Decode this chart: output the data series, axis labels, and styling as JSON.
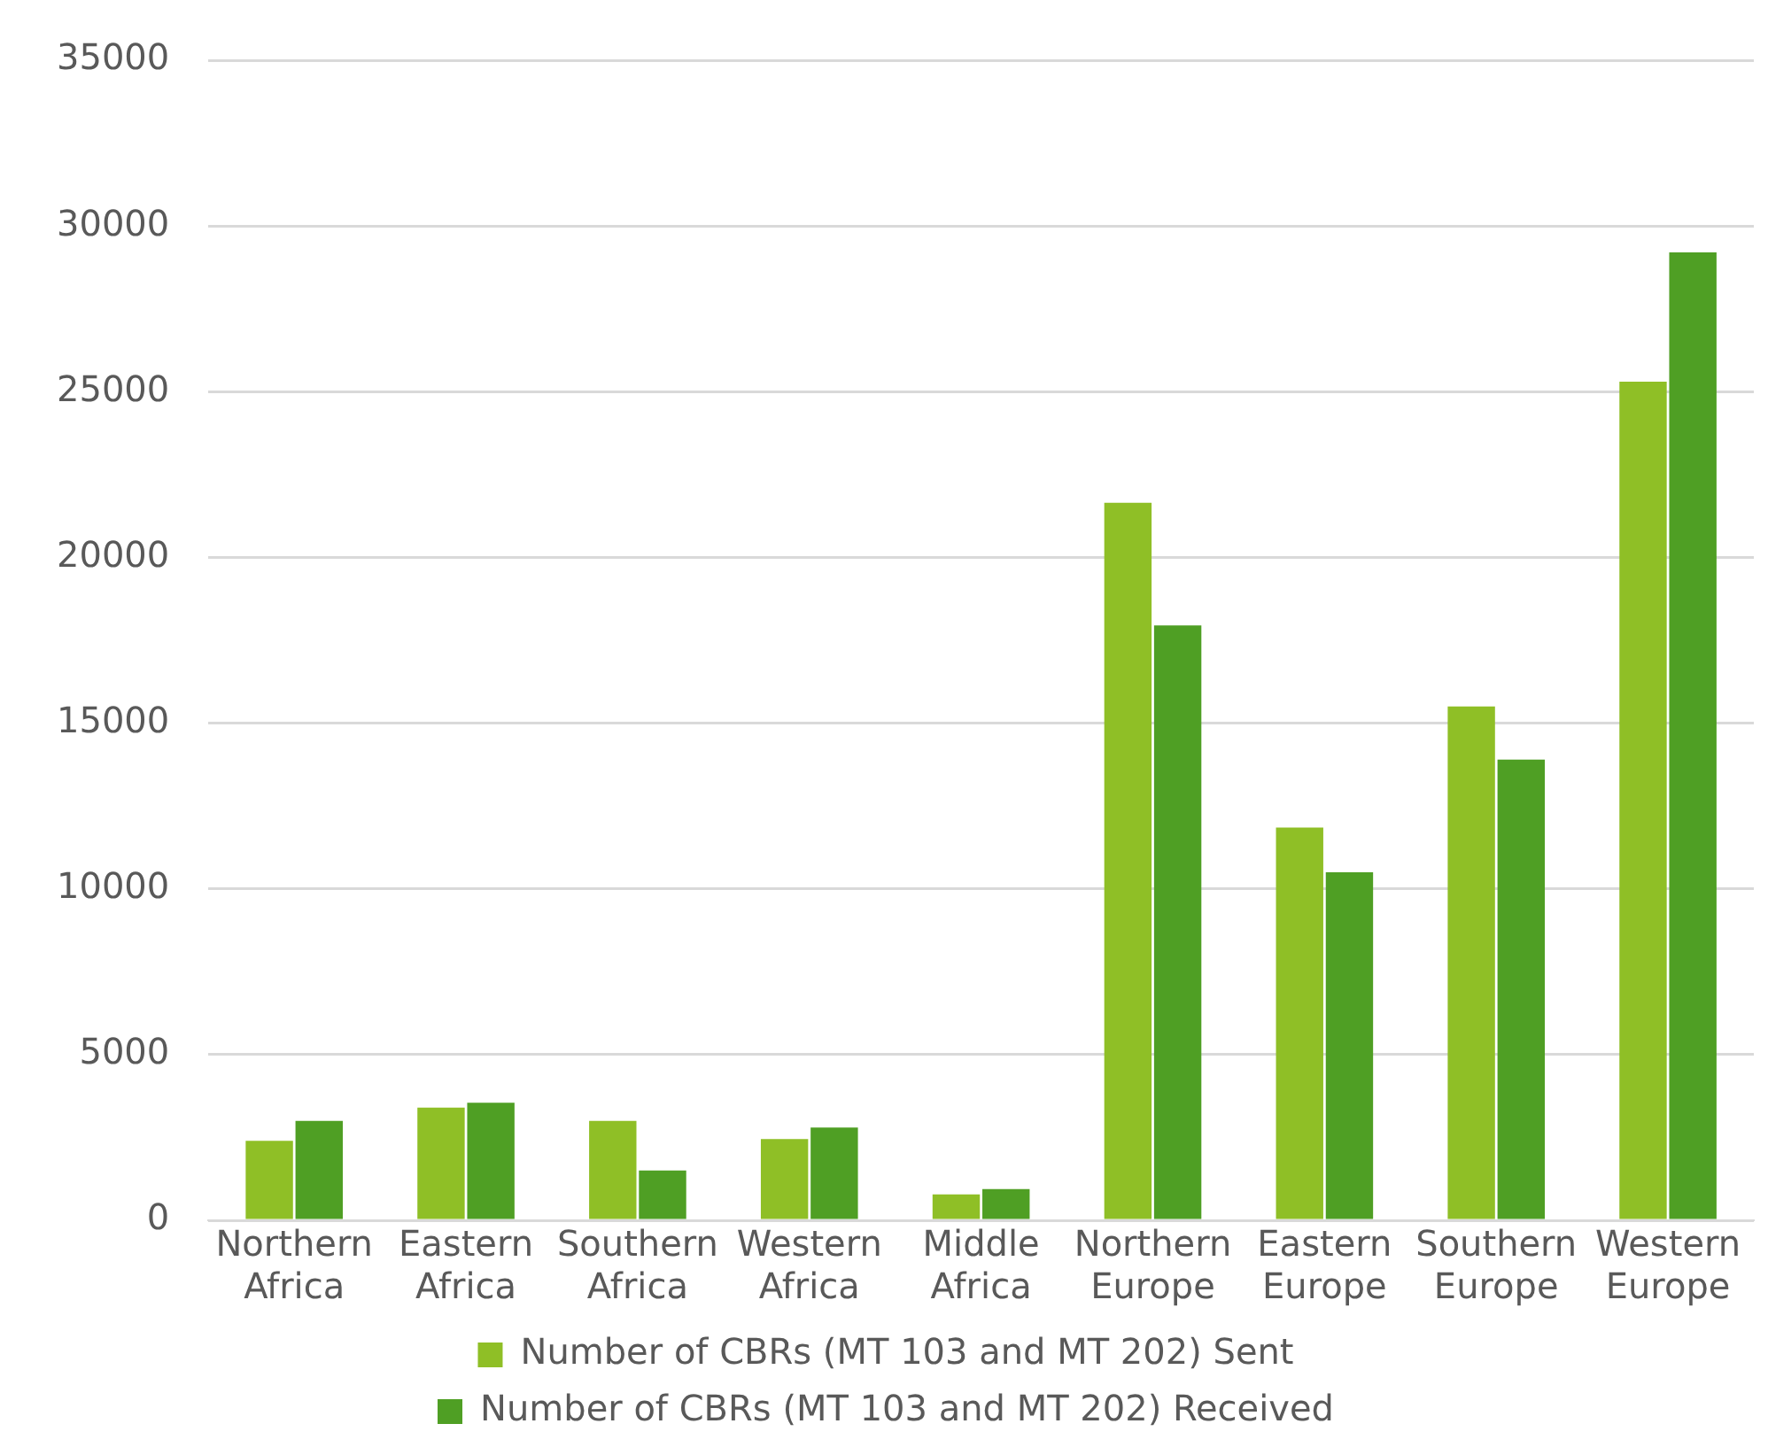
{
  "chart_data": {
    "type": "bar",
    "categories": [
      "Northern Africa",
      "Eastern Africa",
      "Southern Africa",
      "Western Africa",
      "Middle Africa",
      "Northern Europe",
      "Eastern Europe",
      "Southern Europe",
      "Western Europe"
    ],
    "series": [
      {
        "name": "Number of CBRs (MT 103 and MT 202) Sent",
        "color": "#8fbf26",
        "values": [
          2400,
          3400,
          3000,
          2450,
          780,
          21650,
          11850,
          15500,
          25300
        ]
      },
      {
        "name": "Number of CBRs (MT 103 and MT 202) Received",
        "color": "#4f9f24",
        "values": [
          3000,
          3550,
          1500,
          2800,
          940,
          17950,
          10500,
          13900,
          29200
        ]
      }
    ],
    "ylim": [
      0,
      35000
    ],
    "yticks": [
      0,
      5000,
      10000,
      15000,
      20000,
      25000,
      30000,
      35000
    ],
    "grid": "y",
    "legend": "bottom"
  }
}
